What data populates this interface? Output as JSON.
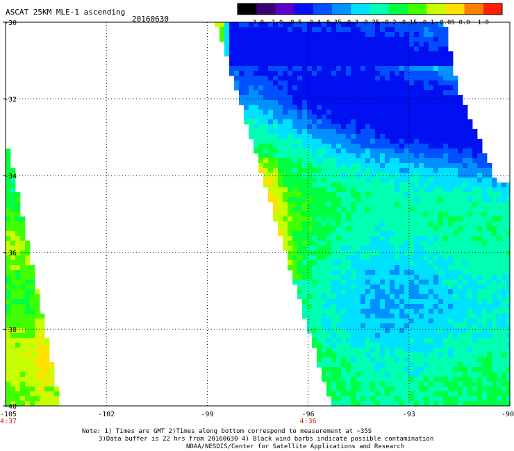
{
  "title": "ASCAT 25KM MLE-1 ascending",
  "date": "20160630",
  "colorbar": {
    "labels": [
      "-3.0",
      "-1.0",
      "-0.5",
      "-0.4",
      "-0.35",
      "-0.3",
      "-0.25",
      "-0.2",
      "-0.15",
      "-0.1",
      "-0.05",
      "0.0",
      "1.0"
    ],
    "colors": [
      "#000000",
      "#3a0070",
      "#5a00c8",
      "#0010f0",
      "#0050ff",
      "#0090ff",
      "#00e0ff",
      "#00ffb0",
      "#00ff40",
      "#40ff00",
      "#c8ff00",
      "#ffe000",
      "#ff8000",
      "#ff2000"
    ]
  },
  "axes": {
    "lat_labels": [
      "-30",
      "-32",
      "-34",
      "-36",
      "-38",
      "-40"
    ],
    "lat_values": [
      -30,
      -32,
      -34,
      -36,
      -38,
      -40
    ],
    "lon_labels": [
      "-105",
      "-102",
      "-99",
      "-96",
      "-93",
      "-90"
    ],
    "lon_values": [
      -105,
      -102,
      -99,
      -96,
      -93,
      -90
    ],
    "lat_range": [
      -40,
      -30
    ],
    "lon_range": [
      -105,
      -90
    ],
    "grid": "dotted"
  },
  "swath_times": [
    {
      "label": "4:37",
      "lon": -105
    },
    {
      "label": "4:36",
      "lon": -96
    }
  ],
  "notes": [
    "Note: 1) Times are GMT 2)Times along bottom correspond to measurement at ~35S",
    "3)Data buffer is 22 hrs from 20160630 4) Black wind barbs indicate possible contamination",
    "NOAA/NESDIS/Center for Satellite Applications and Research"
  ]
}
